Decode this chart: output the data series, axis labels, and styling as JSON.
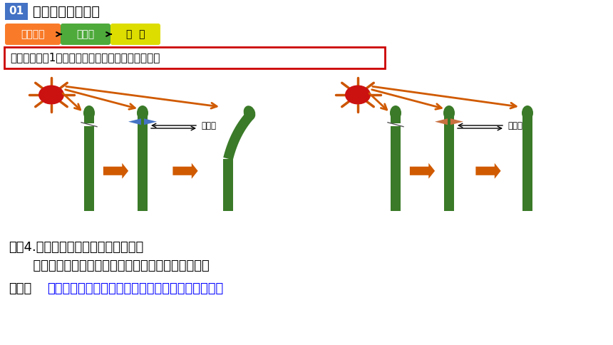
{
  "bg_color": "#ffffff",
  "title_box_color": "#4472C4",
  "title_text": "生长素的发现过程",
  "title_num": "01",
  "badge1_text": "生活现象",
  "badge1_color": "#F97B2A",
  "badge2_text": "达尔文",
  "badge2_color": "#4EAA3B",
  "badge3_text": "詹  森",
  "badge3_color": "#DDDD00",
  "arrow_color": "#D05A00",
  "box_text": "达尔文的推测1：尖端产生了某种影响，传到下部。",
  "box_border_color": "#CC0000",
  "sun_color": "#CC1111",
  "sun_ray_color": "#CC5500",
  "plant_body_color": "#3A7A28",
  "agar_color": "#4472C4",
  "mica_color": "#C87040",
  "thought_text": "思考4.为什么要插入琼脂片和云母片？",
  "answer_text": "      有化学物质可以穿过琼脂片，而使胚芽鞘下部弯曲。",
  "conclusion_prefix": "结论：",
  "conclusion_text": "胚芽鞘顶尖产生的影响可以透过琼脂片传递给下部。",
  "conclusion_color": "#0000FF"
}
